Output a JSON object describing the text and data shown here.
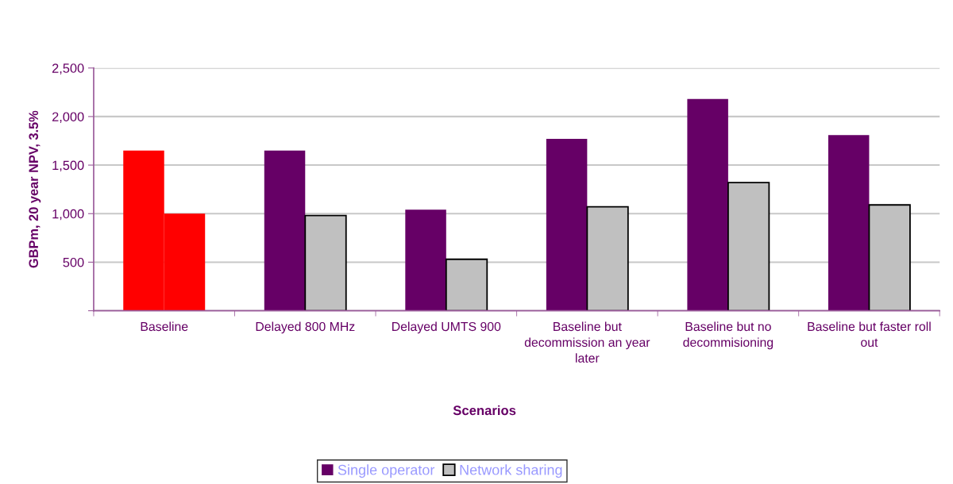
{
  "chart_data": {
    "type": "bar",
    "xlabel": "Scenarios",
    "ylabel": "GBPm, 20 year NPV, 3.5%",
    "categories": [
      "Baseline",
      "Delayed 800 MHz",
      "Delayed UMTS 900",
      "Baseline but\ndecommission an year\nlater",
      "Baseline but no\ndecommisioning",
      "Baseline but faster roll\nout"
    ],
    "series": [
      {
        "name": "Single operator",
        "color": "#660066",
        "colors": [
          "#ff0000",
          "#660066",
          "#660066",
          "#660066",
          "#660066",
          "#660066"
        ],
        "values": [
          1650,
          1650,
          1040,
          1770,
          2180,
          1810
        ]
      },
      {
        "name": "Network sharing",
        "color": "#c0c0c0",
        "colors": [
          "#ff0000",
          "#c0c0c0",
          "#c0c0c0",
          "#c0c0c0",
          "#c0c0c0",
          "#c0c0c0"
        ],
        "values": [
          1000,
          980,
          530,
          1070,
          1320,
          1090
        ]
      }
    ],
    "ylim": [
      0,
      2500
    ],
    "yticks": [
      {
        "value": 0,
        "label": null
      },
      {
        "value": 500,
        "label": "500"
      },
      {
        "value": 1000,
        "label": "1,000"
      },
      {
        "value": 1500,
        "label": "1,500"
      },
      {
        "value": 2000,
        "label": "2,000"
      },
      {
        "value": 2500,
        "label": "2,500"
      }
    ],
    "grid": "y",
    "legend": "bottom"
  }
}
